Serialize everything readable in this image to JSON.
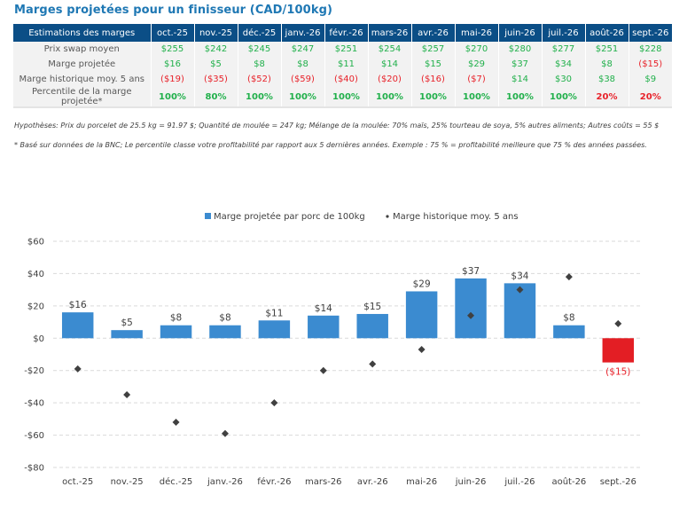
{
  "title": "Marges projetées pour un finisseur (CAD/100kg)",
  "table": {
    "header_label": "Estimations des marges",
    "months": [
      "oct.-25",
      "nov.-25",
      "déc.-25",
      "janv.-26",
      "févr.-26",
      "mars-26",
      "avr.-26",
      "mai-26",
      "juin-26",
      "juil.-26",
      "août-26",
      "sept.-26"
    ],
    "rows": [
      {
        "label": "Prix swap moyen",
        "cells": [
          "$255",
          "$242",
          "$245",
          "$247",
          "$251",
          "$254",
          "$257",
          "$270",
          "$280",
          "$277",
          "$251",
          "$228"
        ],
        "kinds": [
          "pos",
          "pos",
          "pos",
          "pos",
          "pos",
          "pos",
          "pos",
          "pos",
          "pos",
          "pos",
          "pos",
          "pos"
        ]
      },
      {
        "label": "Marge projetée",
        "cells": [
          "$16",
          "$5",
          "$8",
          "$8",
          "$11",
          "$14",
          "$15",
          "$29",
          "$37",
          "$34",
          "$8",
          "($15)"
        ],
        "kinds": [
          "pos",
          "pos",
          "pos",
          "pos",
          "pos",
          "pos",
          "pos",
          "pos",
          "pos",
          "pos",
          "pos",
          "neg"
        ]
      },
      {
        "label": "Marge historique moy. 5 ans",
        "cells": [
          "($19)",
          "($35)",
          "($52)",
          "($59)",
          "($40)",
          "($20)",
          "($16)",
          "($7)",
          "$14",
          "$30",
          "$38",
          "$9"
        ],
        "kinds": [
          "neg",
          "neg",
          "neg",
          "neg",
          "neg",
          "neg",
          "neg",
          "neg",
          "pos",
          "pos",
          "pos",
          "pos"
        ]
      },
      {
        "label": "Percentile de la marge projetée*",
        "cells": [
          "100%",
          "80%",
          "100%",
          "100%",
          "100%",
          "100%",
          "100%",
          "100%",
          "100%",
          "100%",
          "20%",
          "20%"
        ],
        "kinds": [
          "pct-good",
          "pct-good",
          "pct-good",
          "pct-good",
          "pct-good",
          "pct-good",
          "pct-good",
          "pct-good",
          "pct-good",
          "pct-good",
          "pct-bad",
          "pct-bad"
        ]
      }
    ]
  },
  "notes": {
    "hypotheses": "Hypothèses: Prix du porcelet de 25.5 kg = 91.97 $; Quantité de moulée = 247 kg; Mélange de la moulée: 70% maïs, 25% tourteau de soya, 5% autres aliments; Autres coûts = 55 $",
    "footnote": "* Basé sur données de la BNC; Le percentile classe votre profitabilité par rapport aux 5 dernières années. Exemple : 75 % = profitabilité meilleure que 75 % des années passées."
  },
  "colors": {
    "header_bg": "#0b4e86",
    "title": "#1f78b4",
    "bar_positive": "#3b8bd0",
    "bar_negative": "#e31e24",
    "marker": "#404040",
    "positive_text": "#21b04b",
    "negative_text": "#e8222a"
  },
  "chart_data": {
    "type": "bar",
    "categories": [
      "oct.-25",
      "nov.-25",
      "déc.-25",
      "janv.-26",
      "févr.-26",
      "mars-26",
      "avr.-26",
      "mai-26",
      "juin-26",
      "juil.-26",
      "août-26",
      "sept.-26"
    ],
    "series": [
      {
        "name": "Marge projetée par porc de 100kg",
        "type": "bar",
        "values": [
          16,
          5,
          8,
          8,
          11,
          14,
          15,
          29,
          37,
          34,
          8,
          -15
        ],
        "labels": [
          "$16",
          "$5",
          "$8",
          "$8",
          "$11",
          "$14",
          "$15",
          "$29",
          "$37",
          "$34",
          "$8",
          "($15)"
        ]
      },
      {
        "name": "Marge historique moy. 5 ans",
        "type": "scatter",
        "marker": "diamond",
        "values": [
          -19,
          -35,
          -52,
          -59,
          -40,
          -20,
          -16,
          -7,
          14,
          30,
          38,
          9
        ]
      }
    ],
    "yticks": [
      60,
      40,
      20,
      0,
      -20,
      -40,
      -60,
      -80
    ],
    "ytick_labels": [
      "$60",
      "$40",
      "$20",
      "$0",
      "-$20",
      "-$40",
      "-$60",
      "-$80"
    ],
    "ylim": [
      -80,
      60
    ],
    "grid": true,
    "legend": "top-center",
    "title": "",
    "xlabel": "",
    "ylabel": ""
  }
}
